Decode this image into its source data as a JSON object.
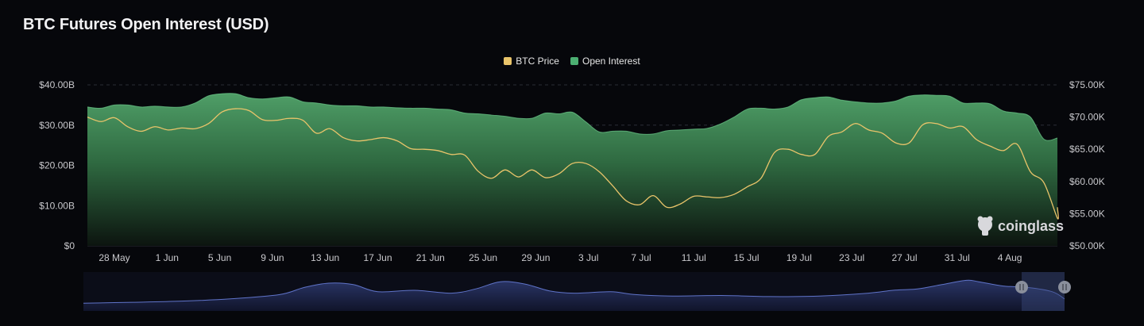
{
  "chart_data": {
    "type": "area",
    "title": "BTC Futures Open Interest (USD)",
    "legend": [
      {
        "name": "BTC Price",
        "color": "#e9c46a"
      },
      {
        "name": "Open Interest",
        "color": "#4caf72"
      }
    ],
    "legend_placement": "top-center",
    "x_ticks": [
      "28 May",
      "1 Jun",
      "5 Jun",
      "9 Jun",
      "13 Jun",
      "17 Jun",
      "21 Jun",
      "25 Jun",
      "29 Jun",
      "3 Jul",
      "7 Jul",
      "11 Jul",
      "15 Jul",
      "19 Jul",
      "23 Jul",
      "27 Jul",
      "31 Jul",
      "4 Aug"
    ],
    "y_left_ticks": [
      "$0",
      "$10.00B",
      "$20.00B",
      "$30.00B",
      "$40.00B"
    ],
    "y_right_ticks": [
      "$50.00K",
      "$55.00K",
      "$60.00K",
      "$65.00K",
      "$70.00K",
      "$75.00K"
    ],
    "y_left_range": [
      0,
      40
    ],
    "y_right_range": [
      50,
      75
    ],
    "x_range": [
      0,
      72
    ],
    "grid": true,
    "series": [
      {
        "name": "Open Interest",
        "axis": "left",
        "unit": "B USD",
        "color": "#4caf72",
        "points": [
          [
            0,
            34.5
          ],
          [
            1,
            34.2
          ],
          [
            2,
            35
          ],
          [
            3,
            35
          ],
          [
            4,
            34.5
          ],
          [
            5,
            34.7
          ],
          [
            6,
            34.5
          ],
          [
            7,
            34.5
          ],
          [
            8,
            35.5
          ],
          [
            9,
            37.3
          ],
          [
            10,
            37.8
          ],
          [
            11,
            37.8
          ],
          [
            12,
            36.8
          ],
          [
            13,
            36.5
          ],
          [
            14,
            36.8
          ],
          [
            15,
            37
          ],
          [
            16,
            35.8
          ],
          [
            17,
            35.5
          ],
          [
            18,
            35
          ],
          [
            19,
            34.8
          ],
          [
            20,
            34.8
          ],
          [
            21,
            34.5
          ],
          [
            22,
            34.5
          ],
          [
            23,
            34.3
          ],
          [
            24,
            34.2
          ],
          [
            25,
            34.2
          ],
          [
            26,
            34
          ],
          [
            27,
            33.8
          ],
          [
            28,
            33
          ],
          [
            29,
            32.8
          ],
          [
            30,
            32.5
          ],
          [
            31,
            32.2
          ],
          [
            32,
            31.7
          ],
          [
            33,
            31.7
          ],
          [
            34,
            33
          ],
          [
            35,
            32.8
          ],
          [
            36,
            33.2
          ],
          [
            37,
            30.8
          ],
          [
            38,
            28.3
          ],
          [
            39,
            28.5
          ],
          [
            40,
            28.5
          ],
          [
            41,
            27.8
          ],
          [
            42,
            27.8
          ],
          [
            43,
            28.6
          ],
          [
            44,
            28.8
          ],
          [
            45,
            29
          ],
          [
            46,
            29.2
          ],
          [
            47,
            30.3
          ],
          [
            48,
            32
          ],
          [
            49,
            34
          ],
          [
            50,
            34.2
          ],
          [
            51,
            34
          ],
          [
            52,
            34.5
          ],
          [
            53,
            36.3
          ],
          [
            54,
            36.8
          ],
          [
            55,
            37
          ],
          [
            56,
            36.2
          ],
          [
            57,
            35.8
          ],
          [
            58,
            35.5
          ],
          [
            59,
            35.5
          ],
          [
            60,
            36
          ],
          [
            61,
            37.2
          ],
          [
            62,
            37.5
          ],
          [
            63,
            37.4
          ],
          [
            64,
            37.2
          ],
          [
            65,
            35.5
          ],
          [
            66,
            35.5
          ],
          [
            67,
            35.3
          ],
          [
            68,
            33.5
          ],
          [
            69,
            33
          ],
          [
            70,
            32
          ],
          [
            71,
            26.5
          ],
          [
            72,
            26.8
          ]
        ]
      },
      {
        "name": "BTC Price",
        "axis": "right",
        "unit": "K USD",
        "color": "#e9c46a",
        "points": [
          [
            0,
            70
          ],
          [
            1,
            69.3
          ],
          [
            2,
            69.9
          ],
          [
            3,
            68.5
          ],
          [
            4,
            67.8
          ],
          [
            5,
            68.5
          ],
          [
            6,
            68
          ],
          [
            7,
            68.3
          ],
          [
            8,
            68.2
          ],
          [
            9,
            69
          ],
          [
            10,
            70.8
          ],
          [
            11,
            71.3
          ],
          [
            12,
            71
          ],
          [
            13,
            69.6
          ],
          [
            14,
            69.5
          ],
          [
            15,
            69.8
          ],
          [
            16,
            69.5
          ],
          [
            17,
            67.5
          ],
          [
            18,
            68.2
          ],
          [
            19,
            66.8
          ],
          [
            20,
            66.3
          ],
          [
            21,
            66.5
          ],
          [
            22,
            66.8
          ],
          [
            23,
            66.3
          ],
          [
            24,
            65.1
          ],
          [
            25,
            65
          ],
          [
            26,
            64.8
          ],
          [
            27,
            64.2
          ],
          [
            28,
            64.1
          ],
          [
            29,
            61.6
          ],
          [
            30,
            60.5
          ],
          [
            31,
            61.8
          ],
          [
            32,
            60.7
          ],
          [
            33,
            61.8
          ],
          [
            34,
            60.6
          ],
          [
            35,
            61.2
          ],
          [
            36,
            62.8
          ],
          [
            37,
            62.8
          ],
          [
            38,
            61.5
          ],
          [
            39,
            59.3
          ],
          [
            40,
            57
          ],
          [
            41,
            56.4
          ],
          [
            42,
            57.8
          ],
          [
            43,
            56
          ],
          [
            44,
            56.5
          ],
          [
            45,
            57.7
          ],
          [
            46,
            57.6
          ],
          [
            47,
            57.5
          ],
          [
            48,
            58
          ],
          [
            49,
            59.2
          ],
          [
            50,
            60.5
          ],
          [
            51,
            64.5
          ],
          [
            52,
            65
          ],
          [
            53,
            64.2
          ],
          [
            54,
            64.2
          ],
          [
            55,
            67
          ],
          [
            56,
            67.7
          ],
          [
            57,
            69
          ],
          [
            58,
            68
          ],
          [
            59,
            67.5
          ],
          [
            60,
            66
          ],
          [
            61,
            66
          ],
          [
            62,
            68.8
          ],
          [
            63,
            69
          ],
          [
            64,
            68.3
          ],
          [
            65,
            68.5
          ],
          [
            66,
            66.5
          ],
          [
            67,
            65.5
          ],
          [
            68,
            64.8
          ],
          [
            69,
            65.8
          ],
          [
            70,
            61.5
          ],
          [
            71,
            59.8
          ],
          [
            72,
            54.3
          ],
          [
            73,
            56
          ]
        ]
      }
    ],
    "navigator": {
      "points": [
        [
          0,
          0.05
        ],
        [
          4,
          0.08
        ],
        [
          8,
          0.12
        ],
        [
          12,
          0.2
        ],
        [
          16,
          0.35
        ],
        [
          18,
          0.6
        ],
        [
          20,
          0.75
        ],
        [
          22,
          0.7
        ],
        [
          24,
          0.45
        ],
        [
          27,
          0.5
        ],
        [
          30,
          0.4
        ],
        [
          32,
          0.55
        ],
        [
          34,
          0.8
        ],
        [
          36,
          0.72
        ],
        [
          38,
          0.48
        ],
        [
          40,
          0.4
        ],
        [
          43,
          0.45
        ],
        [
          45,
          0.35
        ],
        [
          48,
          0.3
        ],
        [
          52,
          0.32
        ],
        [
          56,
          0.28
        ],
        [
          60,
          0.3
        ],
        [
          64,
          0.4
        ],
        [
          66,
          0.5
        ],
        [
          68,
          0.55
        ],
        [
          70,
          0.7
        ],
        [
          72,
          0.85
        ],
        [
          73,
          0.8
        ],
        [
          75,
          0.65
        ],
        [
          77,
          0.6
        ],
        [
          79,
          0.45
        ],
        [
          80,
          0.2
        ]
      ]
    }
  },
  "watermark": "coinglass"
}
